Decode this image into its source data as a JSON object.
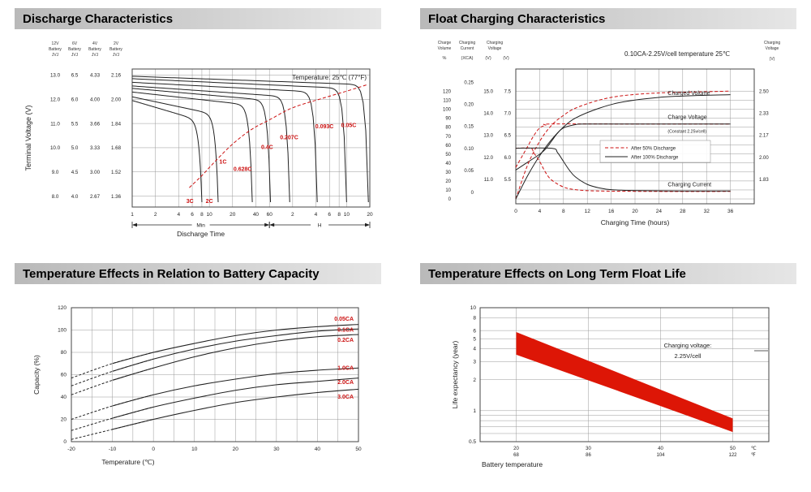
{
  "chart_data": [
    {
      "type": "line",
      "id": "discharge",
      "title": "Discharge Characteristics",
      "note": "Temperature: 25℃ (77°F)",
      "ylabel": "Terminal Voltage (V)",
      "xlabel": "Discharge Time",
      "x_unit_sections": [
        "Min",
        "H"
      ],
      "battery_axes": [
        {
          "header": [
            "12V",
            "Battery",
            "JVJ"
          ],
          "ticks": [
            "13.0",
            "12.0",
            "11.0",
            "10.0",
            "9.0",
            "8.0"
          ]
        },
        {
          "header": [
            "6V",
            "Battery",
            "JVJ"
          ],
          "ticks": [
            "6.5",
            "6.0",
            "5.5",
            "5.0",
            "4.5",
            "4.0"
          ]
        },
        {
          "header": [
            "4V",
            "Battery",
            "JVJ"
          ],
          "ticks": [
            "4.33",
            "4.00",
            "3.66",
            "3.33",
            "3.00",
            "2.67"
          ]
        },
        {
          "header": [
            "2V",
            "Battery",
            "JVJ"
          ],
          "ticks": [
            "2.16",
            "2.00",
            "1.84",
            "1.68",
            "1.52",
            "1.36"
          ]
        }
      ],
      "voltage_gridlines": [
        13,
        12,
        11,
        10,
        9,
        8
      ],
      "x_ticks_minutes": [
        1,
        2,
        4,
        6,
        8,
        10,
        20,
        40,
        60
      ],
      "x_ticks_hours": [
        2,
        4,
        6,
        8,
        10,
        20
      ],
      "curves": [
        {
          "label": "0.05C",
          "end_min": 1150,
          "v_start": 12.95,
          "v_knee": 12.6,
          "label_t": 640,
          "label_v": 10.85
        },
        {
          "label": "0.093C",
          "end_min": 600,
          "v_start": 12.85,
          "v_knee": 12.45,
          "label_t": 310,
          "label_v": 10.8
        },
        {
          "label": "0.207C",
          "end_min": 250,
          "v_start": 12.7,
          "v_knee": 12.3,
          "label_t": 108,
          "label_v": 10.35
        },
        {
          "label": "0.4C",
          "end_min": 110,
          "v_start": 12.55,
          "v_knee": 12.1,
          "label_t": 56,
          "label_v": 9.95
        },
        {
          "label": "0.628C",
          "end_min": 62,
          "v_start": 12.45,
          "v_knee": 11.95,
          "label_t": 27,
          "label_v": 9.05
        },
        {
          "label": "1C",
          "end_min": 36,
          "v_start": 12.3,
          "v_knee": 11.75,
          "label_t": 15,
          "label_v": 9.35
        },
        {
          "label": "2C",
          "end_min": 13,
          "v_start": 12.1,
          "v_knee": 11.35,
          "label_t": 10,
          "label_v": 7.72
        },
        {
          "label": "3C",
          "end_min": 8,
          "v_start": 11.95,
          "v_knee": 11.1,
          "label_t": 5.6,
          "label_v": 7.72
        }
      ],
      "capacity_line": [
        [
          5.5,
          8.35
        ],
        [
          8,
          8.85
        ],
        [
          12,
          9.45
        ],
        [
          20,
          10.15
        ],
        [
          35,
          10.75
        ],
        [
          60,
          11.15
        ],
        [
          120,
          11.65
        ],
        [
          300,
          12.05
        ],
        [
          700,
          12.4
        ],
        [
          1100,
          12.6
        ]
      ]
    },
    {
      "type": "line",
      "id": "float-charging",
      "title": "Float Charging Characteristics",
      "note": "0.10CA-2.25V/cell  temperature 25℃",
      "xlabel": "Charging Time (hours)",
      "left_axes": {
        "headers": [
          [
            "Charge",
            "Volume"
          ],
          [
            "Charging",
            "Current"
          ],
          [
            "Charging",
            "Voltage"
          ]
        ],
        "units": [
          "%",
          "(XCA)",
          "(V)",
          "(V)"
        ],
        "percent_ticks": [
          120,
          110,
          100,
          90,
          80,
          70,
          60,
          50,
          40,
          30,
          20,
          10,
          0
        ],
        "current_ticks": [
          "0.25",
          "0.20",
          "0.15",
          "0.10",
          "0.05",
          "0"
        ],
        "voltage12_ticks": [
          "15.0",
          "14.0",
          "13.0",
          "12.0",
          "11.0"
        ],
        "voltage6_ticks": [
          "7.5",
          "7.0",
          "6.5",
          "6.0",
          "5.5"
        ]
      },
      "right_axis": {
        "header": [
          "Charging",
          "Voltage",
          "(V)"
        ],
        "ticks": [
          "2.50",
          "2.33",
          "2.17",
          "2.00",
          "1.83"
        ]
      },
      "x_ticks": [
        0,
        4,
        8,
        12,
        16,
        20,
        24,
        28,
        32,
        36
      ],
      "legend": [
        {
          "label": "After 50% Discharge",
          "style": "dashed-red"
        },
        {
          "label": "After 100% Discharge",
          "style": "solid-black"
        }
      ],
      "series_labels": {
        "volume": "Charged Volume",
        "voltage": "Charge Voltage",
        "voltage_sub": "(Constant 2.25v/cell)",
        "current": "Charging Current"
      },
      "series": {
        "volume_50": [
          [
            0,
            0
          ],
          [
            2,
            38
          ],
          [
            4,
            64
          ],
          [
            6,
            82
          ],
          [
            8,
            93
          ],
          [
            10,
            101
          ],
          [
            14,
            110
          ],
          [
            18,
            115
          ],
          [
            24,
            118
          ],
          [
            30,
            119
          ],
          [
            36,
            120
          ]
        ],
        "volume_100": [
          [
            0,
            0
          ],
          [
            2,
            26
          ],
          [
            4,
            48
          ],
          [
            6,
            66
          ],
          [
            8,
            80
          ],
          [
            10,
            90
          ],
          [
            14,
            101
          ],
          [
            18,
            108
          ],
          [
            24,
            113
          ],
          [
            30,
            115
          ],
          [
            36,
            116
          ]
        ],
        "voltage_50": [
          [
            0,
            1.92
          ],
          [
            1,
            2.0
          ],
          [
            2,
            2.08
          ],
          [
            3,
            2.16
          ],
          [
            4,
            2.22
          ],
          [
            5,
            2.24
          ],
          [
            6,
            2.25
          ],
          [
            20,
            2.25
          ],
          [
            36,
            2.25
          ]
        ],
        "voltage_100": [
          [
            0,
            1.9
          ],
          [
            2,
            1.96
          ],
          [
            4,
            2.02
          ],
          [
            5,
            2.06
          ],
          [
            6,
            2.12
          ],
          [
            7,
            2.18
          ],
          [
            8,
            2.22
          ],
          [
            10,
            2.245
          ],
          [
            12,
            2.25
          ],
          [
            24,
            2.25
          ],
          [
            36,
            2.25
          ]
        ],
        "current_50": [
          [
            0,
            0.1
          ],
          [
            2.5,
            0.1
          ],
          [
            3,
            0.09
          ],
          [
            4,
            0.07
          ],
          [
            5,
            0.045
          ],
          [
            6,
            0.028
          ],
          [
            8,
            0.012
          ],
          [
            10,
            0.006
          ],
          [
            14,
            0.003
          ],
          [
            24,
            0.002
          ],
          [
            36,
            0.002
          ]
        ],
        "current_100": [
          [
            0,
            0.1
          ],
          [
            6,
            0.1
          ],
          [
            7,
            0.09
          ],
          [
            8,
            0.07
          ],
          [
            9,
            0.05
          ],
          [
            10,
            0.035
          ],
          [
            12,
            0.018
          ],
          [
            14,
            0.01
          ],
          [
            16,
            0.006
          ],
          [
            20,
            0.004
          ],
          [
            28,
            0.003
          ],
          [
            36,
            0.003
          ]
        ]
      }
    },
    {
      "type": "line",
      "id": "capacity-temperature",
      "title": "Temperature Effects in Relation to Battery Capacity",
      "ylabel": "Capacity (%)",
      "xlabel": "Temperature (℃)",
      "y_ticks": [
        0,
        20,
        40,
        60,
        80,
        100,
        120
      ],
      "x_ticks": [
        -20,
        -10,
        0,
        10,
        20,
        30,
        40,
        50
      ],
      "x": [
        -20,
        -10,
        0,
        10,
        20,
        30,
        40,
        50
      ],
      "series": [
        {
          "name": "0.05CA",
          "values": [
            57,
            70,
            80,
            88,
            95,
            100,
            103,
            105
          ],
          "label_y": 110
        },
        {
          "name": "0.1CA",
          "values": [
            50,
            63,
            74,
            83,
            90,
            95,
            99,
            101
          ],
          "label_y": 100
        },
        {
          "name": "0.2CA",
          "values": [
            42,
            55,
            66,
            76,
            84,
            90,
            94,
            96
          ],
          "label_y": 91
        },
        {
          "name": "1.0CA",
          "values": [
            20,
            32,
            42,
            50,
            56,
            61,
            64,
            66
          ],
          "label_y": 66
        },
        {
          "name": "2.0CA",
          "values": [
            10,
            21,
            31,
            39,
            46,
            51,
            54,
            57
          ],
          "label_y": 53
        },
        {
          "name": "3.0CA",
          "values": [
            2,
            11,
            20,
            28,
            35,
            40,
            44,
            47
          ],
          "label_y": 40
        }
      ],
      "label_color": "#cc1111"
    },
    {
      "type": "area",
      "id": "float-life",
      "title": "Temperature Effects on Long Term Float Life",
      "ylabel": "Life expectancy (year)",
      "xlabel": "Battery temperature",
      "annotation": [
        "Charging voltage:",
        "2.25V/cell"
      ],
      "y_ticks": [
        10,
        8,
        6,
        5,
        4,
        3,
        2,
        1,
        0.5
      ],
      "y_minor_ticks": [
        0.9,
        0.8,
        0.7,
        0.6
      ],
      "x_ticks": [
        {
          "c": "20",
          "f": "68"
        },
        {
          "c": "30",
          "f": "86"
        },
        {
          "c": "40",
          "f": "104"
        },
        {
          "c": "50",
          "f": "122"
        }
      ],
      "unit_labels": {
        "c": "℃",
        "f": "℉"
      },
      "band_color": "#dd1606",
      "band_upper": [
        [
          20,
          5.8
        ],
        [
          30,
          3.05
        ],
        [
          40,
          1.6
        ],
        [
          50,
          0.84
        ]
      ],
      "band_lower": [
        [
          20,
          3.5
        ],
        [
          30,
          1.97
        ],
        [
          40,
          1.11
        ],
        [
          50,
          0.62
        ]
      ]
    }
  ]
}
